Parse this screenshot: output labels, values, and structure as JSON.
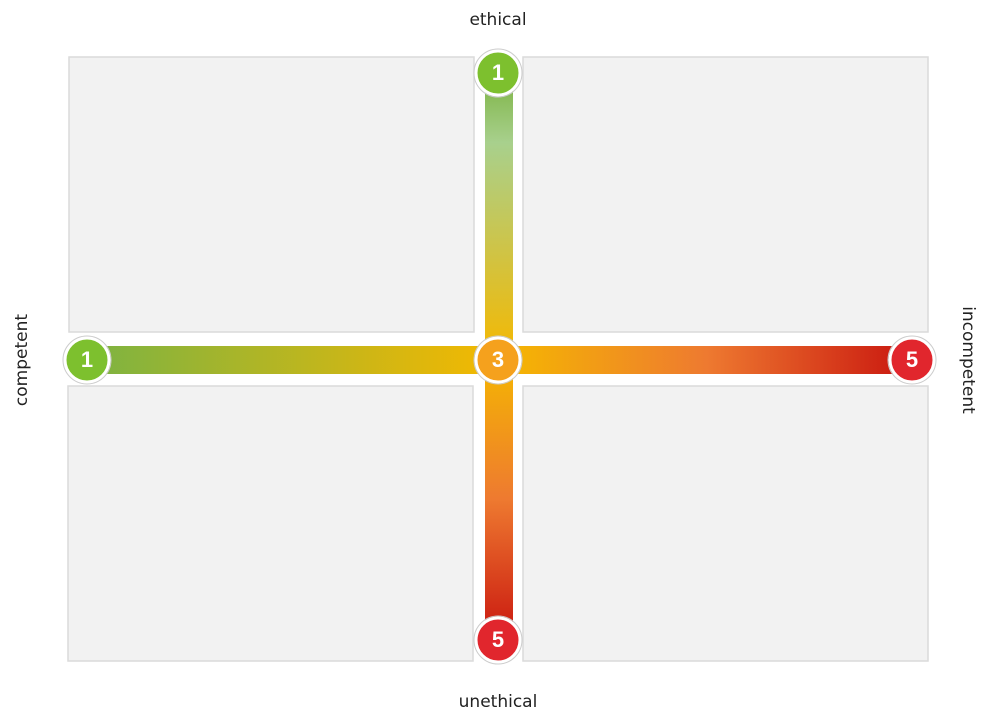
{
  "axes": {
    "top": "ethical",
    "bottom": "unethical",
    "left": "competent",
    "right": "incompetent"
  },
  "nodes": [
    {
      "id": "top",
      "label": "1"
    },
    {
      "id": "center",
      "label": "3"
    },
    {
      "id": "bottom",
      "label": "5"
    },
    {
      "id": "left",
      "label": "1"
    },
    {
      "id": "right",
      "label": "5"
    }
  ]
}
